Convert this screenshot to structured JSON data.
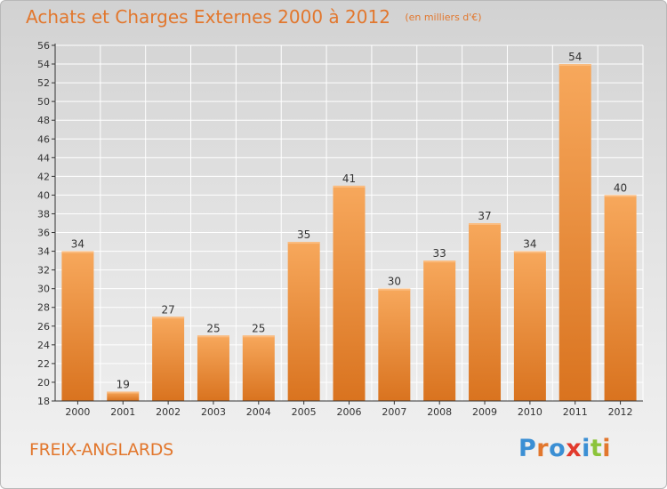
{
  "title": "Achats et Charges Externes 2000 à 2012",
  "subtitle": "(en milliers d'€)",
  "commune": "FREIX-ANGLARDS",
  "logo": {
    "text": "Proxiti",
    "letter_colors": [
      "#3b8fd4",
      "#e2772d",
      "#3b8fd4",
      "#e23a2d",
      "#3b8fd4",
      "#8cc43a",
      "#e2772d"
    ]
  },
  "colors": {
    "accent": "#e2772d",
    "bar_top": "#f7a85c",
    "bar_bottom": "#d9731f",
    "axis": "#333333"
  },
  "chart_data": {
    "type": "bar",
    "categories": [
      "2000",
      "2001",
      "2002",
      "2003",
      "2004",
      "2005",
      "2006",
      "2007",
      "2008",
      "2009",
      "2010",
      "2011",
      "2012"
    ],
    "values": [
      34,
      19,
      27,
      25,
      25,
      35,
      41,
      30,
      33,
      37,
      34,
      54,
      40
    ],
    "ylim": [
      18,
      56
    ],
    "yticks": [
      18,
      20,
      22,
      24,
      26,
      28,
      30,
      32,
      34,
      36,
      38,
      40,
      42,
      44,
      46,
      48,
      50,
      52,
      54,
      56
    ],
    "grid": true,
    "title": "Achats et Charges Externes 2000 à 2012",
    "xlabel": "",
    "ylabel": ""
  }
}
